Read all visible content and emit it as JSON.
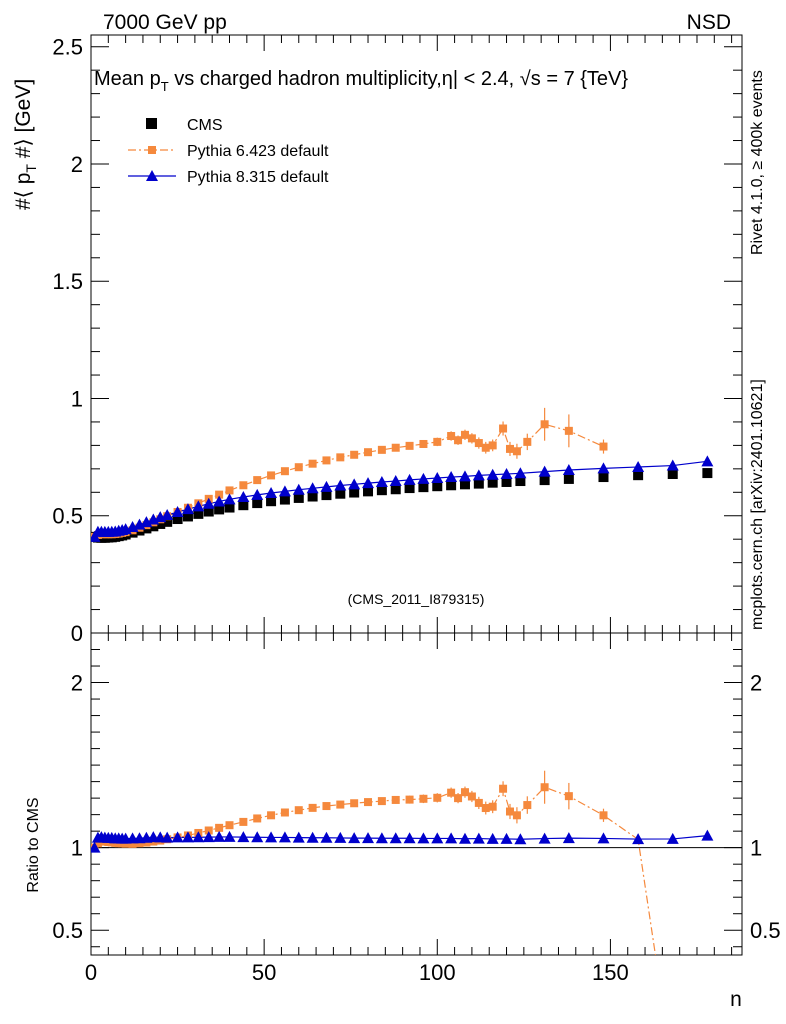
{
  "header": {
    "left_label": "7000 GeV pp",
    "right_label": "NSD"
  },
  "side_labels": {
    "rivet": "Rivet 4.1.0, ≥ 400k events",
    "mcplots": "mcplots.cern.ch [arXiv:2401.10621]"
  },
  "chart_data": [
    {
      "type": "scatter",
      "panel": "main",
      "title": "Mean p_T vs charged hadron multiplicity, |η| < 2.4, √s = 7 {TeV}",
      "title_parts": {
        "pre": "Mean p",
        "sub": "T",
        "post": " vs charged hadron multiplicity,",
        "eta": "η",
        "cut": "| < 2.4, √s = 7 {TeV}"
      },
      "watermark": "(CMS_2011_I879315)",
      "ylabel_parts": {
        "pre": "#⟨ p",
        "sub": "T",
        "post": " #⟩ [GeV]"
      },
      "xlabel": "n",
      "xlim": [
        0,
        188
      ],
      "ylim": [
        0,
        2.55
      ],
      "xticks": [
        0,
        50,
        100,
        150
      ],
      "yticks": [
        0,
        0.5,
        1,
        1.5,
        2,
        2.5
      ],
      "ytick_labels": [
        "0",
        "0.5",
        "1",
        "1.5",
        "2",
        "2.5"
      ],
      "legend": {
        "placement": "top-left",
        "entries": [
          {
            "label": "CMS",
            "series": "cms"
          },
          {
            "label": "Pythia 6.423 default",
            "series": "py6"
          },
          {
            "label": "Pythia 8.315 default",
            "series": "py8"
          }
        ]
      },
      "series": [
        {
          "name": "cms",
          "label": "CMS",
          "color": "#000000",
          "marker": "square",
          "x": [
            1,
            2,
            3,
            4,
            5,
            6,
            7,
            8,
            9,
            10,
            12,
            14,
            16,
            18,
            20,
            22,
            25,
            28,
            31,
            34,
            37,
            40,
            44,
            48,
            52,
            56,
            60,
            64,
            68,
            72,
            76,
            80,
            84,
            88,
            92,
            96,
            100,
            104,
            108,
            112,
            116,
            120,
            124,
            131,
            138,
            148,
            158,
            168,
            178
          ],
          "y": [
            0.41,
            0.407,
            0.406,
            0.406,
            0.407,
            0.408,
            0.41,
            0.413,
            0.416,
            0.42,
            0.428,
            0.437,
            0.446,
            0.455,
            0.465,
            0.474,
            0.486,
            0.497,
            0.508,
            0.518,
            0.527,
            0.535,
            0.545,
            0.554,
            0.562,
            0.569,
            0.576,
            0.582,
            0.588,
            0.594,
            0.599,
            0.604,
            0.609,
            0.613,
            0.618,
            0.622,
            0.626,
            0.63,
            0.634,
            0.637,
            0.641,
            0.644,
            0.648,
            0.652,
            0.657,
            0.665,
            0.673,
            0.678,
            0.682
          ]
        },
        {
          "name": "py6",
          "label": "Pythia 6.423 default",
          "color": "#f5893d",
          "marker": "square-small",
          "line": "dashdot",
          "x": [
            1,
            2,
            3,
            4,
            5,
            6,
            7,
            8,
            9,
            10,
            12,
            14,
            16,
            18,
            20,
            22,
            25,
            28,
            31,
            34,
            37,
            40,
            44,
            48,
            52,
            56,
            60,
            64,
            68,
            72,
            76,
            80,
            84,
            88,
            92,
            96,
            100,
            104,
            106,
            108,
            110,
            112,
            114,
            116,
            119,
            121,
            123,
            126,
            131,
            138,
            148
          ],
          "y": [
            0.41,
            0.418,
            0.421,
            0.421,
            0.421,
            0.421,
            0.422,
            0.424,
            0.427,
            0.43,
            0.438,
            0.449,
            0.46,
            0.472,
            0.485,
            0.498,
            0.516,
            0.534,
            0.553,
            0.572,
            0.59,
            0.608,
            0.63,
            0.652,
            0.672,
            0.69,
            0.707,
            0.722,
            0.736,
            0.749,
            0.76,
            0.771,
            0.781,
            0.79,
            0.798,
            0.806,
            0.815,
            0.84,
            0.822,
            0.845,
            0.83,
            0.81,
            0.79,
            0.8,
            0.872,
            0.785,
            0.775,
            0.815,
            0.89,
            0.862,
            0.795
          ],
          "yerr": [
            0.004,
            0.004,
            0.004,
            0.004,
            0.004,
            0.004,
            0.004,
            0.004,
            0.004,
            0.004,
            0.004,
            0.004,
            0.004,
            0.004,
            0.004,
            0.004,
            0.005,
            0.005,
            0.005,
            0.005,
            0.005,
            0.006,
            0.006,
            0.006,
            0.007,
            0.007,
            0.008,
            0.008,
            0.009,
            0.01,
            0.011,
            0.012,
            0.013,
            0.014,
            0.015,
            0.016,
            0.018,
            0.02,
            0.02,
            0.022,
            0.022,
            0.024,
            0.025,
            0.025,
            0.03,
            0.03,
            0.032,
            0.035,
            0.07,
            0.07,
            0.03
          ]
        },
        {
          "name": "py8",
          "label": "Pythia 8.315 default",
          "color": "#0000cc",
          "marker": "triangle",
          "line": "solid",
          "x": [
            1,
            2,
            3,
            4,
            5,
            6,
            7,
            8,
            9,
            10,
            12,
            14,
            16,
            18,
            20,
            22,
            25,
            28,
            31,
            34,
            37,
            40,
            44,
            48,
            52,
            56,
            60,
            64,
            68,
            72,
            76,
            80,
            84,
            88,
            92,
            96,
            100,
            104,
            108,
            112,
            116,
            120,
            124,
            131,
            138,
            148,
            158,
            168,
            178
          ],
          "y": [
            0.41,
            0.432,
            0.432,
            0.431,
            0.431,
            0.432,
            0.433,
            0.436,
            0.439,
            0.443,
            0.452,
            0.462,
            0.473,
            0.484,
            0.494,
            0.503,
            0.516,
            0.528,
            0.54,
            0.551,
            0.561,
            0.57,
            0.58,
            0.589,
            0.597,
            0.604,
            0.611,
            0.617,
            0.623,
            0.629,
            0.634,
            0.639,
            0.644,
            0.648,
            0.653,
            0.657,
            0.661,
            0.665,
            0.668,
            0.672,
            0.675,
            0.678,
            0.681,
            0.688,
            0.695,
            0.702,
            0.708,
            0.714,
            0.732
          ]
        }
      ]
    },
    {
      "type": "scatter",
      "panel": "ratio",
      "ylabel": "Ratio to CMS",
      "xlabel": "n",
      "xlim": [
        0,
        188
      ],
      "ylim": [
        0.35,
        2.3
      ],
      "xticks": [
        0,
        50,
        100,
        150
      ],
      "xtick_labels": [
        "0",
        "50",
        "100",
        "150"
      ],
      "yticks": [
        0.5,
        1,
        2
      ],
      "ytick_labels": [
        "0.5",
        "1",
        "2"
      ],
      "reference_line": 1,
      "series": [
        {
          "name": "py6",
          "color": "#f5893d",
          "x": [
            1,
            2,
            3,
            4,
            5,
            6,
            7,
            8,
            9,
            10,
            12,
            14,
            16,
            18,
            20,
            22,
            25,
            28,
            31,
            34,
            37,
            40,
            44,
            48,
            52,
            56,
            60,
            64,
            68,
            72,
            76,
            80,
            84,
            88,
            92,
            96,
            100,
            104,
            106,
            108,
            110,
            112,
            114,
            116,
            119,
            121,
            123,
            126,
            131,
            138,
            148,
            158,
            163
          ],
          "y": [
            1.0,
            1.027,
            1.037,
            1.037,
            1.034,
            1.032,
            1.029,
            1.027,
            1.026,
            1.024,
            1.023,
            1.027,
            1.031,
            1.037,
            1.043,
            1.051,
            1.062,
            1.074,
            1.089,
            1.104,
            1.12,
            1.136,
            1.156,
            1.177,
            1.196,
            1.213,
            1.227,
            1.241,
            1.252,
            1.261,
            1.269,
            1.276,
            1.282,
            1.289,
            1.291,
            1.296,
            1.302,
            1.333,
            1.3,
            1.336,
            1.31,
            1.271,
            1.24,
            1.248,
            1.357,
            1.219,
            1.196,
            1.258,
            1.366,
            1.312,
            1.196,
            1.05,
            0.35
          ],
          "yerr": [
            0.01,
            0.01,
            0.01,
            0.01,
            0.01,
            0.01,
            0.01,
            0.01,
            0.01,
            0.01,
            0.01,
            0.01,
            0.01,
            0.01,
            0.012,
            0.012,
            0.012,
            0.012,
            0.012,
            0.012,
            0.013,
            0.013,
            0.014,
            0.014,
            0.015,
            0.015,
            0.016,
            0.016,
            0.017,
            0.018,
            0.019,
            0.02,
            0.021,
            0.022,
            0.024,
            0.026,
            0.028,
            0.031,
            0.031,
            0.034,
            0.034,
            0.037,
            0.039,
            0.039,
            0.045,
            0.046,
            0.049,
            0.053,
            0.1,
            0.08,
            0.04,
            0.0,
            0.0
          ]
        },
        {
          "name": "py8",
          "color": "#0000cc",
          "x": [
            1,
            2,
            3,
            4,
            5,
            6,
            7,
            8,
            9,
            10,
            12,
            14,
            16,
            18,
            20,
            22,
            25,
            28,
            31,
            34,
            37,
            40,
            44,
            48,
            52,
            56,
            60,
            64,
            68,
            72,
            76,
            80,
            84,
            88,
            92,
            96,
            100,
            104,
            108,
            112,
            116,
            120,
            124,
            131,
            138,
            148,
            158,
            168,
            178
          ],
          "y": [
            1.0,
            1.061,
            1.064,
            1.061,
            1.059,
            1.059,
            1.056,
            1.056,
            1.055,
            1.055,
            1.056,
            1.057,
            1.06,
            1.064,
            1.062,
            1.061,
            1.062,
            1.062,
            1.063,
            1.064,
            1.065,
            1.065,
            1.064,
            1.063,
            1.062,
            1.062,
            1.061,
            1.06,
            1.06,
            1.059,
            1.058,
            1.058,
            1.057,
            1.057,
            1.057,
            1.056,
            1.056,
            1.056,
            1.054,
            1.055,
            1.053,
            1.053,
            1.051,
            1.055,
            1.058,
            1.056,
            1.052,
            1.053,
            1.073
          ]
        }
      ]
    }
  ]
}
